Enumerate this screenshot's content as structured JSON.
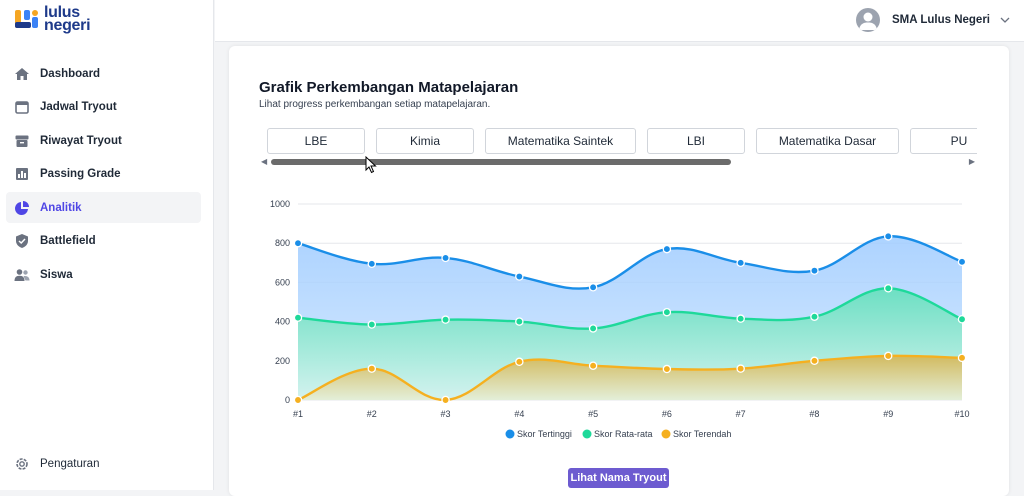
{
  "brand": {
    "line1": "lulus",
    "line2": "negeri"
  },
  "sidebar": {
    "items": [
      {
        "label": "Dashboard",
        "icon": "home-icon"
      },
      {
        "label": "Jadwal Tryout",
        "icon": "calendar-icon"
      },
      {
        "label": "Riwayat Tryout",
        "icon": "archive-icon"
      },
      {
        "label": "Passing Grade",
        "icon": "bar-chart-icon"
      },
      {
        "label": "Analitik",
        "icon": "pie-chart-icon",
        "active": true
      },
      {
        "label": "Battlefield",
        "icon": "shield-icon"
      },
      {
        "label": "Siswa",
        "icon": "users-icon"
      }
    ],
    "settings": {
      "label": "Pengaturan",
      "icon": "gear-icon"
    }
  },
  "header": {
    "user_name": "SMA Lulus Negeri"
  },
  "main": {
    "title": "Grafik Perkembangan Matapelajaran",
    "subtitle": "Lihat progress perkembangan setiap matapelajaran.",
    "tabs": [
      "LBE",
      "Kimia",
      "Matematika Saintek",
      "LBI",
      "Matematika Dasar",
      "PU"
    ],
    "button_label": "Lihat Nama Tryout"
  },
  "colors": {
    "accent": "#4f46e5",
    "button": "#6d5bd0",
    "top": "#1a8ee8",
    "avg": "#1ed99a",
    "low": "#f5b020"
  },
  "chart_data": {
    "type": "area",
    "categories": [
      "#1",
      "#2",
      "#3",
      "#4",
      "#5",
      "#6",
      "#7",
      "#8",
      "#9",
      "#10"
    ],
    "ylim": [
      0,
      1000
    ],
    "yticks": [
      0,
      200,
      400,
      600,
      800,
      1000
    ],
    "series": [
      {
        "name": "Skor Tertinggi",
        "color": "#1a8ee8",
        "values": [
          800,
          695,
          725,
          630,
          575,
          770,
          700,
          660,
          835,
          705
        ]
      },
      {
        "name": "Skor Rata-rata",
        "color": "#1ed99a",
        "values": [
          420,
          385,
          410,
          400,
          365,
          448,
          415,
          425,
          570,
          412
        ]
      },
      {
        "name": "Skor Terendah",
        "color": "#f5b020",
        "values": [
          0,
          160,
          0,
          195,
          175,
          158,
          160,
          200,
          225,
          215
        ]
      }
    ],
    "legend_position": "bottom",
    "grid": true
  }
}
